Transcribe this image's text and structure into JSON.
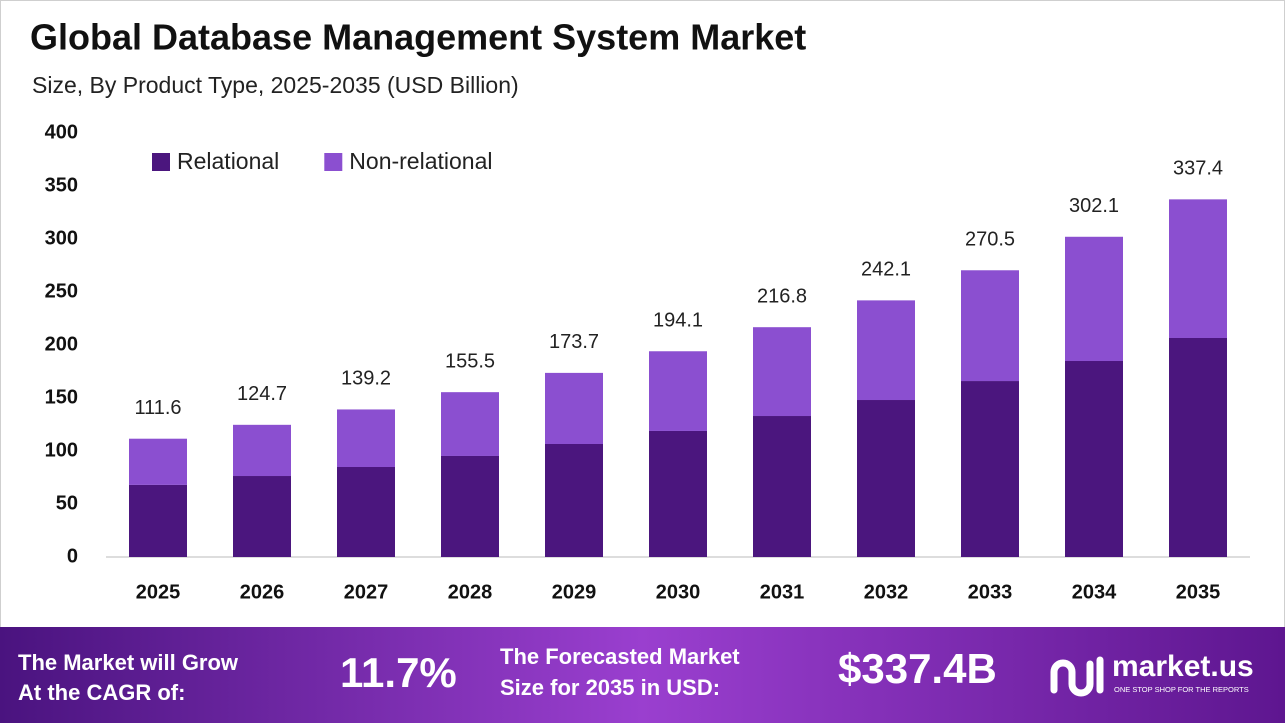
{
  "chart_data": {
    "type": "stacked_bar",
    "title": "Global Database Management System Market",
    "subtitle": "Size, By Product Type, 2025-2035 (USD Billion)",
    "categories": [
      "2025",
      "2026",
      "2027",
      "2028",
      "2029",
      "2030",
      "2031",
      "2032",
      "2033",
      "2034",
      "2035"
    ],
    "series": [
      {
        "name": "Relational",
        "color": "#4b167e",
        "values": [
          68.0,
          76.4,
          84.9,
          95.3,
          106.6,
          118.9,
          133.0,
          148.1,
          166.0,
          184.9,
          206.6
        ]
      },
      {
        "name": "Non-relational",
        "color": "#8b4fd0",
        "values": [
          43.6,
          48.3,
          54.3,
          60.2,
          67.1,
          75.2,
          83.8,
          94.0,
          104.5,
          117.2,
          130.8
        ]
      }
    ],
    "totals": [
      111.6,
      124.7,
      139.2,
      155.5,
      173.7,
      194.1,
      216.8,
      242.1,
      270.5,
      302.1,
      337.4
    ],
    "ylim": [
      0,
      400
    ],
    "yticks": [
      0,
      50,
      100,
      150,
      200,
      250,
      300,
      350,
      400
    ],
    "grid": false,
    "legend": "top-left"
  },
  "footer": {
    "cagr_label": [
      "The Market will Grow",
      "At the CAGR of:"
    ],
    "cagr": "11.7%",
    "forecast_label": [
      "The Forecasted Market",
      "Size for 2035 in USD:"
    ],
    "forecast": "$337.4B",
    "brand": "market.us",
    "tagline": "ONE STOP SHOP FOR THE REPORTS"
  }
}
